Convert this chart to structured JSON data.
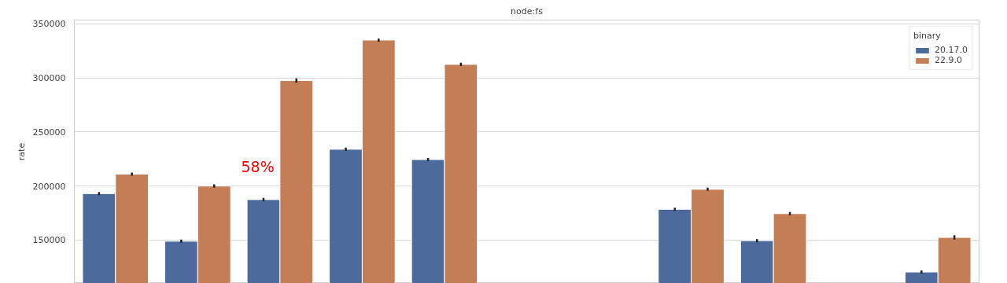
{
  "chart_data": {
    "type": "bar",
    "title": "node:fs",
    "ylabel": "rate",
    "legend_title": "binary",
    "categories": [
      null,
      null,
      null,
      null,
      null,
      null,
      null,
      null,
      null,
      null,
      null
    ],
    "series": [
      {
        "name": "20.17.0",
        "color": "#4c6a9c",
        "values": [
          193000,
          149000,
          187500,
          234000,
          224500,
          null,
          null,
          178500,
          149500,
          null,
          120500
        ],
        "errors": [
          1500,
          1500,
          1500,
          1500,
          1500,
          null,
          null,
          1500,
          1500,
          null,
          1500
        ]
      },
      {
        "name": "22.9.0",
        "color": "#c47e56",
        "values": [
          211000,
          200000,
          297500,
          335000,
          312500,
          null,
          null,
          197000,
          174500,
          null,
          152500
        ],
        "errors": [
          1500,
          1500,
          2000,
          1500,
          1500,
          null,
          null,
          1500,
          1500,
          null,
          2000
        ]
      }
    ],
    "annotations": [
      "58%"
    ],
    "ylim": [
      110000,
      353500
    ],
    "yticks": [
      150000,
      200000,
      250000,
      300000,
      350000
    ],
    "grid": "y",
    "legend": "top right",
    "tick_labels": "y"
  }
}
